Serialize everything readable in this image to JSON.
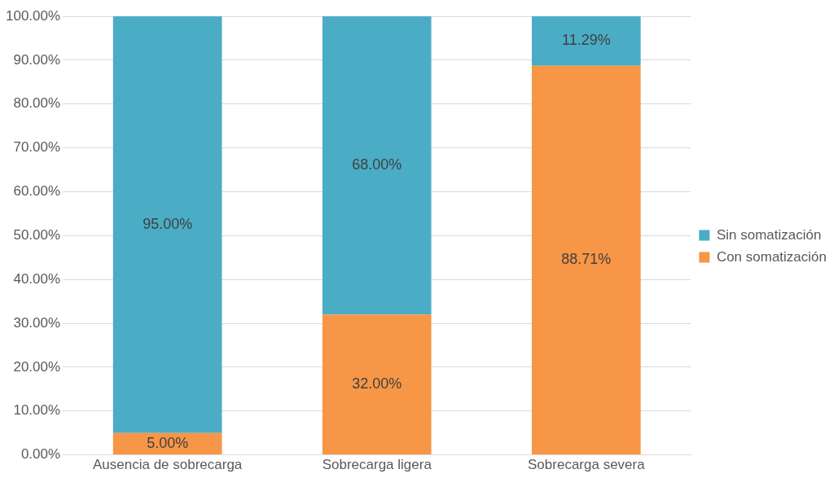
{
  "chart_data": {
    "type": "bar",
    "stacked": true,
    "categories": [
      "Ausencia de sobrecarga",
      "Sobrecarga ligera",
      "Sobrecarga severa"
    ],
    "series": [
      {
        "name": "Con somatización",
        "color": "#f79646",
        "values": [
          5,
          32,
          88.71
        ],
        "value_labels": [
          "5.00%",
          "32.00%",
          "88.71%"
        ]
      },
      {
        "name": "Sin somatización",
        "color": "#4bacc6",
        "values": [
          95,
          68,
          11.29
        ],
        "value_labels": [
          "95.00%",
          "68.00%",
          "11.29%"
        ]
      }
    ],
    "ylim": [
      0,
      100
    ],
    "yticks": [
      {
        "value": 0,
        "label": "0.00%"
      },
      {
        "value": 10,
        "label": "10.00%"
      },
      {
        "value": 20,
        "label": "20.00%"
      },
      {
        "value": 30,
        "label": "30.00%"
      },
      {
        "value": 40,
        "label": "40.00%"
      },
      {
        "value": 50,
        "label": "50.00%"
      },
      {
        "value": 60,
        "label": "60.00%"
      },
      {
        "value": 70,
        "label": "70.00%"
      },
      {
        "value": 80,
        "label": "80.00%"
      },
      {
        "value": 90,
        "label": "90.00%"
      },
      {
        "value": 100,
        "label": "100.00%"
      }
    ],
    "grid": "y",
    "legend": "right"
  }
}
